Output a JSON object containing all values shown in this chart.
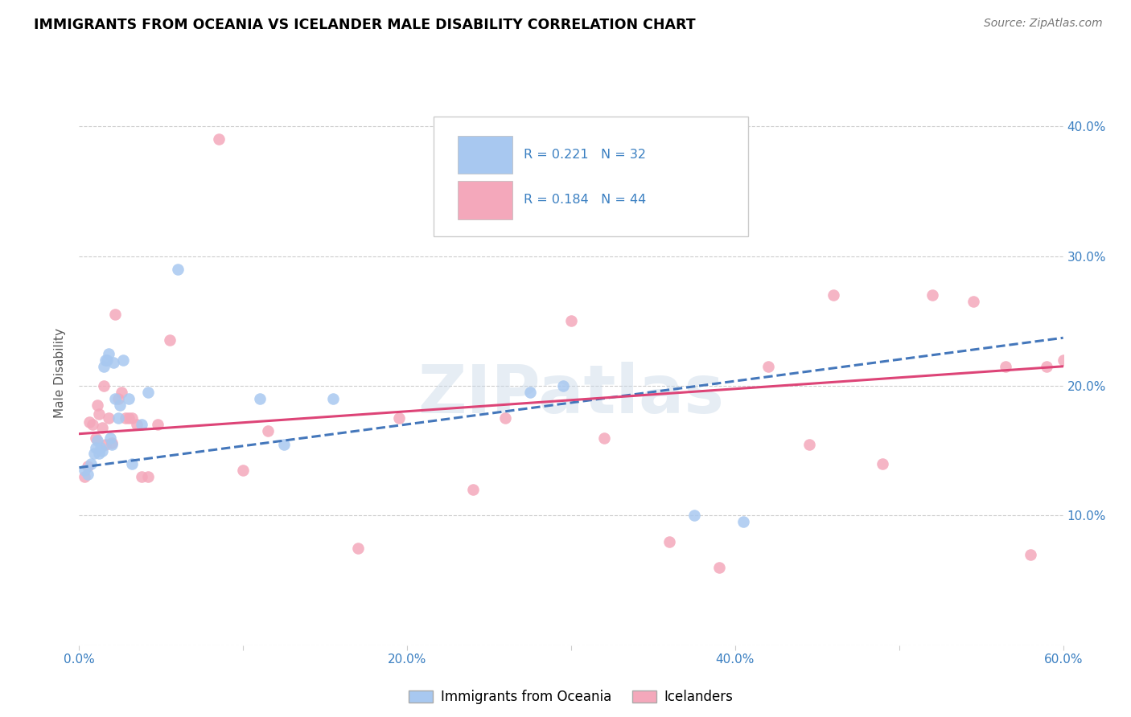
{
  "title": "IMMIGRANTS FROM OCEANIA VS ICELANDER MALE DISABILITY CORRELATION CHART",
  "source": "Source: ZipAtlas.com",
  "ylabel": "Male Disability",
  "xlim": [
    0.0,
    0.6
  ],
  "ylim": [
    0.0,
    0.42
  ],
  "xticks": [
    0.0,
    0.1,
    0.2,
    0.3,
    0.4,
    0.5,
    0.6
  ],
  "xtick_labels": [
    "0.0%",
    "",
    "20.0%",
    "",
    "40.0%",
    "",
    "60.0%"
  ],
  "yticks_right": [
    0.0,
    0.1,
    0.2,
    0.3,
    0.4
  ],
  "ytick_labels_right": [
    "",
    "10.0%",
    "20.0%",
    "30.0%",
    "40.0%"
  ],
  "blue_R": 0.221,
  "blue_N": 32,
  "pink_R": 0.184,
  "pink_N": 44,
  "blue_color": "#a8c8f0",
  "pink_color": "#f4a8bb",
  "trend_blue": "#4477bb",
  "trend_pink": "#dd4477",
  "watermark": "ZIPatlas",
  "legend_labels": [
    "Immigrants from Oceania",
    "Icelanders"
  ],
  "label_color": "#3a7fc1",
  "blue_x": [
    0.003,
    0.005,
    0.007,
    0.009,
    0.01,
    0.011,
    0.012,
    0.013,
    0.014,
    0.015,
    0.016,
    0.017,
    0.018,
    0.019,
    0.02,
    0.021,
    0.022,
    0.024,
    0.025,
    0.027,
    0.03,
    0.032,
    0.038,
    0.042,
    0.06,
    0.11,
    0.125,
    0.155,
    0.275,
    0.295,
    0.375,
    0.405
  ],
  "blue_y": [
    0.135,
    0.132,
    0.14,
    0.148,
    0.152,
    0.158,
    0.148,
    0.152,
    0.15,
    0.215,
    0.22,
    0.22,
    0.225,
    0.16,
    0.155,
    0.218,
    0.19,
    0.175,
    0.185,
    0.22,
    0.19,
    0.14,
    0.17,
    0.195,
    0.29,
    0.19,
    0.155,
    0.19,
    0.195,
    0.2,
    0.1,
    0.095
  ],
  "pink_x": [
    0.003,
    0.005,
    0.006,
    0.008,
    0.01,
    0.011,
    0.012,
    0.014,
    0.015,
    0.016,
    0.018,
    0.02,
    0.022,
    0.024,
    0.026,
    0.028,
    0.03,
    0.032,
    0.035,
    0.038,
    0.042,
    0.048,
    0.055,
    0.085,
    0.1,
    0.115,
    0.17,
    0.195,
    0.24,
    0.26,
    0.3,
    0.32,
    0.36,
    0.39,
    0.42,
    0.445,
    0.46,
    0.49,
    0.52,
    0.545,
    0.565,
    0.58,
    0.59,
    0.6
  ],
  "pink_y": [
    0.13,
    0.138,
    0.172,
    0.17,
    0.16,
    0.185,
    0.178,
    0.168,
    0.2,
    0.155,
    0.175,
    0.156,
    0.255,
    0.19,
    0.195,
    0.175,
    0.175,
    0.175,
    0.17,
    0.13,
    0.13,
    0.17,
    0.235,
    0.39,
    0.135,
    0.165,
    0.075,
    0.175,
    0.12,
    0.175,
    0.25,
    0.16,
    0.08,
    0.06,
    0.215,
    0.155,
    0.27,
    0.14,
    0.27,
    0.265,
    0.215,
    0.07,
    0.215,
    0.22
  ]
}
